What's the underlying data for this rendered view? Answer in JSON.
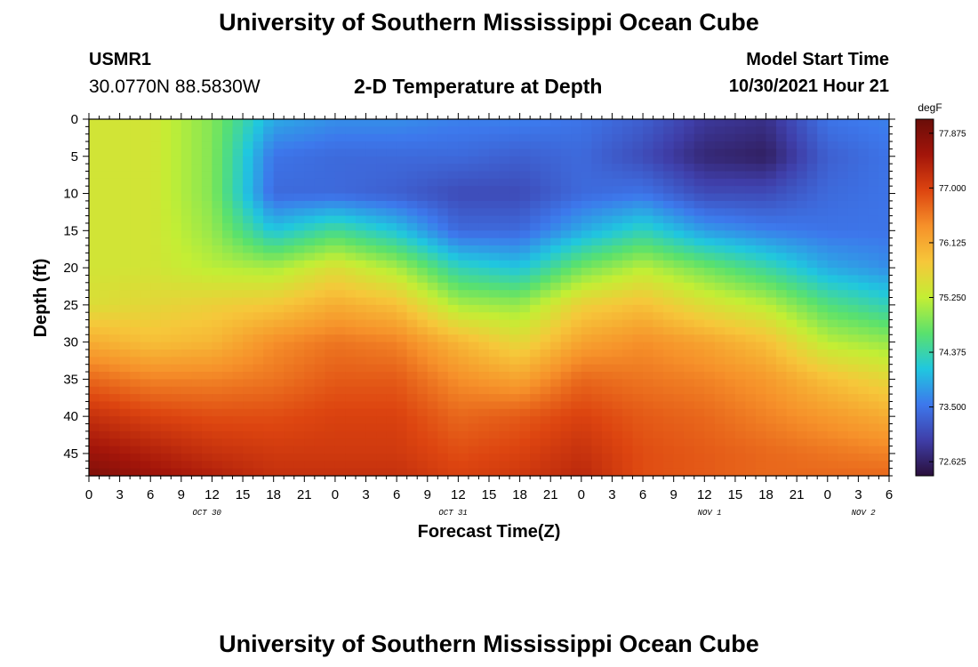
{
  "header": {
    "title": "University of Southern Mississippi Ocean Cube",
    "station_id": "USMR1",
    "coordinates": "30.0770N  88.5830W",
    "chart_title": "2-D Temperature at Depth",
    "model_start_label": "Model Start Time",
    "model_start_value": "10/30/2021 Hour 21"
  },
  "footer": {
    "title": "University of Southern Mississippi Ocean Cube"
  },
  "colors": {
    "colormap": [
      "#2a0f3b",
      "#3f3ea8",
      "#3d78ec",
      "#20c7df",
      "#5ae16d",
      "#c4ee34",
      "#f6c73a",
      "#f6912a",
      "#dd4510",
      "#a3150a",
      "#6a0d09"
    ]
  },
  "chart_data": {
    "type": "heatmap",
    "xlabel": "Forecast Time(Z)",
    "ylabel": "Depth (ft)",
    "colorbar_label": "degF",
    "xlim": [
      0,
      78
    ],
    "ylim": [
      48,
      0
    ],
    "x_tick_values": [
      0,
      3,
      6,
      9,
      12,
      15,
      18,
      21,
      24,
      27,
      30,
      33,
      36,
      39,
      42,
      45,
      48,
      51,
      54,
      57,
      60,
      63,
      66,
      69,
      72,
      75,
      78
    ],
    "x_tick_labels": [
      "0",
      "3",
      "6",
      "9",
      "12",
      "15",
      "18",
      "21",
      "0",
      "3",
      "6",
      "9",
      "12",
      "15",
      "18",
      "21",
      "0",
      "3",
      "6",
      "9",
      "12",
      "15",
      "18",
      "21",
      "0",
      "3",
      "6"
    ],
    "y_tick_values": [
      0,
      5,
      10,
      15,
      20,
      25,
      30,
      35,
      40,
      45
    ],
    "y_tick_labels": [
      "0",
      "5",
      "10",
      "15",
      "20",
      "25",
      "30",
      "35",
      "40",
      "45"
    ],
    "date_labels": [
      {
        "label": "OCT 30",
        "x": 11.5
      },
      {
        "label": "OCT 31",
        "x": 35.5
      },
      {
        "label": "NOV 1",
        "x": 60.5
      },
      {
        "label": "NOV 2",
        "x": 75.5
      }
    ],
    "colorbar_range": [
      72.4,
      78.1
    ],
    "colorbar_ticks": [
      77.875,
      77.0,
      76.125,
      75.25,
      74.375,
      73.5,
      72.625
    ],
    "colorbar_tick_labels": [
      "77.875",
      "77.000",
      "76.125",
      "75.250",
      "74.375",
      "73.500",
      "72.625"
    ],
    "grid": {
      "times": [
        0,
        6,
        12,
        18,
        24,
        30,
        36,
        42,
        48,
        54,
        60,
        66,
        72,
        78
      ],
      "depths": [
        0,
        5,
        10,
        15,
        20,
        25,
        30,
        35,
        40,
        45,
        48
      ],
      "temps": [
        [
          75.4,
          75.4,
          75.4,
          75.4,
          75.4,
          75.5,
          76.1,
          76.7,
          77.2,
          77.6,
          77.9
        ],
        [
          75.4,
          75.4,
          75.4,
          75.4,
          75.4,
          75.6,
          75.9,
          76.5,
          77.0,
          77.4,
          77.6
        ],
        [
          74.9,
          74.9,
          74.9,
          75.0,
          75.2,
          75.7,
          76.0,
          76.5,
          76.9,
          77.2,
          77.4
        ],
        [
          73.9,
          73.5,
          73.4,
          74.1,
          75.1,
          75.8,
          76.4,
          76.6,
          76.9,
          77.1,
          77.2
        ],
        [
          73.7,
          73.4,
          73.4,
          74.5,
          75.5,
          76.1,
          76.6,
          76.8,
          77.0,
          77.1,
          77.2
        ],
        [
          73.7,
          73.4,
          73.3,
          74.1,
          75.1,
          75.9,
          76.5,
          76.8,
          77.0,
          77.1,
          77.2
        ],
        [
          73.6,
          73.4,
          73.1,
          73.4,
          74.3,
          75.1,
          76.0,
          76.4,
          76.7,
          76.9,
          77.0
        ],
        [
          73.6,
          73.3,
          73.1,
          73.4,
          74.1,
          75.0,
          75.6,
          76.2,
          76.8,
          77.0,
          77.1
        ],
        [
          73.5,
          73.4,
          73.4,
          73.9,
          74.8,
          75.7,
          76.2,
          76.7,
          77.0,
          77.2,
          77.3
        ],
        [
          73.3,
          73.1,
          73.5,
          74.3,
          75.2,
          75.9,
          76.4,
          76.6,
          76.8,
          76.9,
          76.9
        ],
        [
          72.9,
          72.7,
          73.1,
          73.8,
          74.8,
          75.5,
          76.2,
          76.5,
          76.7,
          76.8,
          76.8
        ],
        [
          72.8,
          72.6,
          73.1,
          73.6,
          74.4,
          75.2,
          75.9,
          76.3,
          76.5,
          76.7,
          76.7
        ],
        [
          73.5,
          73.3,
          73.4,
          73.5,
          73.9,
          74.6,
          75.2,
          75.9,
          76.3,
          76.6,
          76.7
        ],
        [
          73.6,
          73.5,
          73.5,
          73.5,
          73.7,
          74.3,
          75.0,
          75.6,
          76.1,
          76.5,
          76.7
        ]
      ]
    }
  }
}
